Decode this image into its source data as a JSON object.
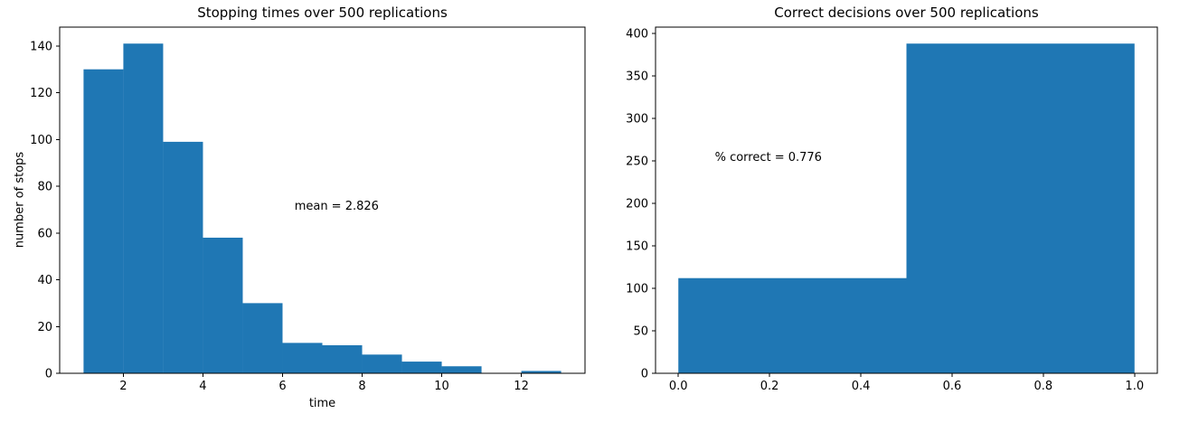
{
  "figure": {
    "background": "#ffffff",
    "bar_color": "#1f77b4",
    "axis_color": "#000000",
    "text_color": "#000000"
  },
  "chart_data": [
    {
      "type": "bar",
      "kind": "histogram",
      "title": "Stopping times over 500 replications",
      "xlabel": "time",
      "ylabel": "number of stops",
      "bin_start": 1,
      "bin_width": 1,
      "values": [
        130,
        141,
        99,
        58,
        30,
        13,
        12,
        8,
        5,
        3,
        0,
        1
      ],
      "xlim": [
        0.4,
        13.6
      ],
      "ylim": [
        0,
        148.05
      ],
      "xticks": [
        2,
        4,
        6,
        8,
        10,
        12
      ],
      "xtick_labels": [
        "2",
        "4",
        "6",
        "8",
        "10",
        "12"
      ],
      "yticks": [
        0,
        20,
        40,
        60,
        80,
        100,
        120,
        140
      ],
      "ytick_labels": [
        "0",
        "20",
        "40",
        "60",
        "80",
        "100",
        "120",
        "140"
      ],
      "grid": false,
      "legend": null,
      "annotation": {
        "text": "mean = 2.826",
        "x": 6.3,
        "y": 70
      }
    },
    {
      "type": "bar",
      "kind": "histogram",
      "title": "Correct decisions over 500 replications",
      "xlabel": "",
      "ylabel": "",
      "bin_start": 0,
      "bin_width": 0.5,
      "values": [
        112,
        388
      ],
      "xlim": [
        -0.05,
        1.05
      ],
      "ylim": [
        0,
        407.4
      ],
      "xticks": [
        0,
        0.2,
        0.4,
        0.6,
        0.8,
        1.0
      ],
      "xtick_labels": [
        "0.0",
        "0.2",
        "0.4",
        "0.6",
        "0.8",
        "1.0"
      ],
      "yticks": [
        0,
        50,
        100,
        150,
        200,
        250,
        300,
        350,
        400
      ],
      "ytick_labels": [
        "0",
        "50",
        "100",
        "150",
        "200",
        "250",
        "300",
        "350",
        "400"
      ],
      "grid": false,
      "legend": null,
      "annotation": {
        "text": "% correct = 0.776",
        "x": 0.08,
        "y": 250
      }
    }
  ]
}
